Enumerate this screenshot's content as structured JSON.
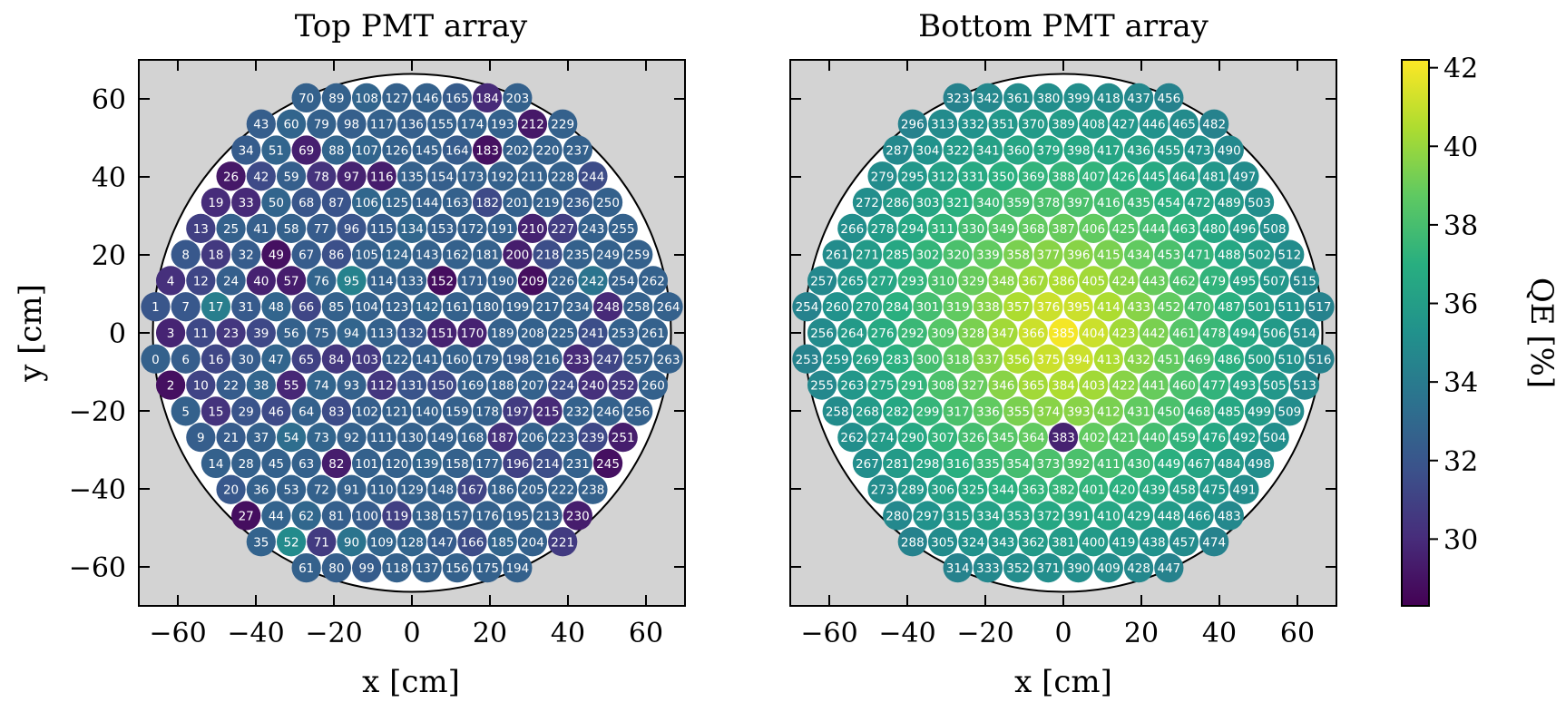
{
  "chart_data": [
    {
      "type": "scatter",
      "title": "Top PMT array",
      "xlabel": "x [cm]",
      "ylabel": "y [cm]",
      "xlim": [
        -70,
        70
      ],
      "ylim": [
        -70,
        70
      ],
      "xticks": [
        -60,
        -40,
        -20,
        0,
        20,
        40,
        60
      ],
      "yticks": [
        -60,
        -40,
        -20,
        0,
        20,
        40,
        60
      ],
      "tick_labels": [
        "−60",
        "−40",
        "−20",
        "0",
        "20",
        "40",
        "60"
      ],
      "background": "#d3d3d3",
      "boundary_radius_cm": 66.4,
      "pmt_radius_cm": 3.8,
      "pitch_cm": 7.73,
      "pmt_ids": "0-252",
      "rows": [
        {
          "y": -66.5,
          "x_start": -14.1,
          "ids": [
            0,
            6,
            15
          ]
        },
        {
          "y": -59.9,
          "x_start": -21.1,
          "ids": [
            1,
            7,
            16,
            27
          ]
        },
        {
          "y": -52.7,
          "x_start": -28.0,
          "ids": [
            2,
            8,
            17,
            28,
            40
          ]
        },
        {
          "y": -46.0,
          "x_start": -42.0,
          "ids": [
            3,
            9,
            18,
            29,
            41,
            54,
            69
          ]
        },
        {
          "y": -39.0,
          "x_start": -49.0,
          "ids": [
            4,
            10,
            19,
            30,
            42,
            55,
            70,
            85
          ]
        },
        {
          "y": -32.3,
          "x_start": -49.0,
          "ids": [
            5,
            11,
            20,
            31,
            43,
            56,
            71,
            86,
            102
          ]
        },
        {
          "y": -25.3,
          "x_start": -56.0,
          "ids": [
            12,
            21,
            32,
            44,
            57,
            72,
            87,
            103,
            118
          ]
        },
        {
          "y": -18.5,
          "x_start": -56.0,
          "ids": [
            14,
            22,
            33,
            45,
            58,
            73,
            88,
            104,
            119,
            135
          ]
        },
        {
          "y": -11.6,
          "x_start": -56.0,
          "ids": [
            13,
            23,
            34,
            46,
            59,
            74,
            89,
            105,
            120,
            136
          ]
        },
        {
          "y": -4.7,
          "x_start": -63.0,
          "ids": [
            24,
            35,
            47,
            60,
            75,
            90,
            106,
            121,
            137,
            152,
            151
          ]
        },
        {
          "y": 2.2,
          "x_start": -63.0,
          "ids": [
            25,
            36,
            48,
            61,
            76,
            91,
            107,
            122,
            138,
            153,
            168
          ]
        },
        {
          "y": 9.1,
          "x_start": -63.0,
          "ids": [
            26,
            37,
            49,
            62,
            77,
            92,
            108,
            123,
            139,
            154,
            169,
            184
          ]
        },
        {
          "y": 16.0,
          "x_start": -63.0,
          "ids": [
            39,
            51,
            64,
            79,
            94,
            109,
            124,
            140,
            155,
            170,
            185,
            199
          ]
        },
        {
          "y": 22.9,
          "x_start": -63.0,
          "ids": [
            38,
            50,
            63,
            78,
            93,
            110,
            125,
            141,
            156,
            171,
            186,
            200
          ]
        },
        {
          "y": 29.8,
          "x_start": -63.0,
          "ids": [
            53,
            65,
            80,
            95,
            111,
            126,
            142,
            157,
            172,
            187,
            201
          ]
        },
        {
          "y": 36.7,
          "x_start": -63.0,
          "ids": [
            52,
            66,
            81,
            96,
            112,
            127,
            143,
            158,
            173,
            188,
            202,
            213
          ]
        },
        {
          "y": 43.6,
          "x_start": -63.0,
          "ids": [
            67,
            82,
            97,
            113,
            128,
            144,
            159,
            174,
            189,
            203,
            214,
            226
          ]
        },
        {
          "y": 50.5,
          "x_start": -63.0,
          "ids": [
            68,
            83,
            98,
            114,
            129,
            145,
            160,
            175,
            190,
            204,
            215,
            227
          ]
        },
        {
          "y": 57.4,
          "x_start": -63.0,
          "ids": [
            84,
            99,
            115,
            130,
            146,
            161,
            176,
            191,
            205,
            216,
            228
          ]
        },
        {
          "y": 64.3,
          "x_start": -63.0,
          "ids": [
            101,
            100,
            116,
            131,
            147,
            162,
            177,
            192,
            206,
            217,
            229,
            238
          ]
        }
      ],
      "pmts": [
        {
          "id": 0,
          "x": -14.1,
          "y": -64.9,
          "qe": 32.6
        },
        {
          "id": 6,
          "x": 0.6,
          "y": -64.9,
          "qe": 32.4
        },
        {
          "id": 15,
          "x": 14.1,
          "y": -64.9,
          "qe": 30.3
        },
        {
          "id": 1,
          "x": -21.1,
          "y": -59.0,
          "qe": 32.0
        },
        {
          "id": 7,
          "x": -7.0,
          "y": -59.0,
          "qe": 32.1
        },
        {
          "id": 16,
          "x": 7.0,
          "y": -59.0,
          "qe": 31.2
        },
        {
          "id": 27,
          "x": 21.1,
          "y": -59.0,
          "qe": 28.8
        },
        {
          "id": 2,
          "x": -28.1,
          "y": -53.1,
          "qe": 28.9
        },
        {
          "id": 8,
          "x": -14.1,
          "y": -53.1,
          "qe": 32.1
        },
        {
          "id": 17,
          "x": 0.0,
          "y": -53.1,
          "qe": 34.2
        },
        {
          "id": 28,
          "x": 14.1,
          "y": -53.1,
          "qe": 32.6
        },
        {
          "id": 40,
          "x": 28.1,
          "y": -53.1,
          "qe": 29.6
        },
        {
          "id": 3,
          "x": -35.2,
          "y": -47.2,
          "qe": 29.7
        },
        {
          "id": 9,
          "x": -21.1,
          "y": -47.2,
          "qe": 32.4
        },
        {
          "id": 18,
          "x": -7.0,
          "y": -47.2,
          "qe": 30.6
        },
        {
          "id": 29,
          "x": 7.0,
          "y": -47.2,
          "qe": 31.9
        },
        {
          "id": 41,
          "x": 21.1,
          "y": -47.2,
          "qe": 32.5
        },
        {
          "id": 55,
          "x": 28.1,
          "y": -47.2,
          "qe": 29.8
        },
        {
          "id": 54,
          "x": 35.2,
          "y": -47.2,
          "qe": 33.3
        },
        {
          "id": 69,
          "x": 42.2,
          "y": -47.2,
          "qe": 29.5
        },
        {
          "id": 4,
          "x": -42.2,
          "y": -47.2,
          "qe": 30.2
        },
        {
          "id": 10,
          "x": -28.1,
          "y": -47.2,
          "qe": 31.1
        },
        {
          "id": 19,
          "x": -14.1,
          "y": -47.2,
          "qe": 30.0
        },
        {
          "id": 30,
          "x": 0.0,
          "y": -47.2,
          "qe": 32.3
        },
        {
          "id": 42,
          "x": 14.1,
          "y": -47.2,
          "qe": 31.4
        },
        {
          "id": 5,
          "x": -49.2,
          "y": -44.3,
          "qe": 32.6
        },
        {
          "id": 11,
          "x": -35.2,
          "y": -44.3,
          "qe": 31.3
        },
        {
          "id": 20,
          "x": -21.1,
          "y": -44.3,
          "qe": 32.1
        },
        {
          "id": 31,
          "x": -7.0,
          "y": -44.3,
          "qe": 32.2
        },
        {
          "id": 43,
          "x": 7.0,
          "y": -44.3,
          "qe": 32.4
        },
        {
          "id": 56,
          "x": 21.1,
          "y": -44.3,
          "qe": 32.6
        },
        {
          "id": 70,
          "x": 35.2,
          "y": -44.3,
          "qe": 32.6
        },
        {
          "id": 85,
          "x": 49.2,
          "y": -44.3,
          "qe": 32.6
        },
        {
          "id": 12,
          "x": -42.2,
          "y": -38.4,
          "qe": 31.2
        },
        {
          "id": 21,
          "x": -28.1,
          "y": -38.4,
          "qe": 32.3
        },
        {
          "id": 32,
          "x": -14.1,
          "y": -38.4,
          "qe": 32.3
        },
        {
          "id": 44,
          "x": 0.0,
          "y": -38.4,
          "qe": 32.7
        },
        {
          "id": 57,
          "x": 14.1,
          "y": -38.4,
          "qe": 29.4
        },
        {
          "id": 71,
          "x": 28.1,
          "y": -38.4,
          "qe": 30.7
        },
        {
          "id": 86,
          "x": 42.2,
          "y": -38.4,
          "qe": 31.7
        },
        {
          "id": 102,
          "x": 49.2,
          "y": -35.4,
          "qe": 32.5
        },
        {
          "id": 13,
          "x": -49.2,
          "y": -35.4,
          "qe": 30.9
        },
        {
          "id": 22,
          "x": -35.2,
          "y": -35.4,
          "qe": 32.3
        },
        {
          "id": 33,
          "x": -21.1,
          "y": -35.4,
          "qe": 29.9
        },
        {
          "id": 45,
          "x": -7.0,
          "y": -35.4,
          "qe": 32.6
        },
        {
          "id": 58,
          "x": 7.0,
          "y": -35.4,
          "qe": 32.6
        },
        {
          "id": 72,
          "x": 21.1,
          "y": -35.4,
          "qe": 32.6
        },
        {
          "id": 87,
          "x": 35.2,
          "y": -35.4,
          "qe": 31.9
        },
        {
          "id": 103,
          "x": 42.2,
          "y": -32.5,
          "qe": 30.6
        },
        {
          "id": 14,
          "x": -56.3,
          "y": -32.5,
          "qe": 32.6
        },
        {
          "id": 23,
          "x": -42.2,
          "y": -32.5,
          "qe": 30.5
        },
        {
          "id": 34,
          "x": -28.1,
          "y": -32.5,
          "qe": 32.3
        },
        {
          "id": 46,
          "x": -14.1,
          "y": -32.5,
          "qe": 31.4
        },
        {
          "id": 59,
          "x": 0.0,
          "y": -32.5,
          "qe": 32.5
        },
        {
          "id": 73,
          "x": 14.1,
          "y": -32.5,
          "qe": 32.8
        },
        {
          "id": 88,
          "x": 28.1,
          "y": -32.5,
          "qe": 32.8
        },
        {
          "id": 118,
          "x": 56.3,
          "y": -32.5,
          "qe": 32.6
        }
      ]
    },
    {
      "type": "scatter",
      "title": "Bottom PMT array",
      "xlabel": "x [cm]",
      "ylabel": "",
      "xlim": [
        -70,
        70
      ],
      "ylim": [
        -70,
        70
      ],
      "xticks": [
        -60,
        -40,
        -20,
        0,
        20,
        40,
        60
      ],
      "tick_labels": [
        "−60",
        "−40",
        "−20",
        "0",
        "20",
        "40",
        "60"
      ],
      "background": "#d3d3d3",
      "boundary_radius_cm": 66.4,
      "pmt_ids": "253-493"
    }
  ],
  "colorbar": {
    "label": "QE [%]",
    "colormap": "viridis",
    "range": [
      28.3,
      42.2
    ],
    "ticks": [
      30,
      32,
      34,
      36,
      38,
      40,
      42
    ]
  },
  "top_labels": {
    "top": {
      "0": 32.6,
      "1": 32.0,
      "2": 28.9,
      "3": 29.7,
      "4": 30.2,
      "5": 32.6,
      "6": 32.4,
      "7": 32.1,
      "8": 32.1,
      "9": 32.4,
      "10": 31.1,
      "11": 31.3,
      "12": 31.2,
      "13": 30.9,
      "14": 32.6,
      "15": 30.3,
      "16": 31.2,
      "17": 34.2,
      "18": 30.6,
      "19": 30.0,
      "20": 32.1,
      "21": 32.3,
      "22": 32.3,
      "23": 30.5,
      "24": 32.5,
      "25": 32.6,
      "26": 29.2,
      "27": 28.8,
      "28": 32.6,
      "29": 31.9,
      "30": 32.3,
      "31": 32.2,
      "32": 32.3,
      "33": 29.9,
      "34": 32.3,
      "35": 32.7,
      "36": 32.6,
      "37": 32.6,
      "38": 32.8,
      "39": 31.3,
      "40": 29.6,
      "41": 32.5,
      "42": 31.4,
      "43": 32.4,
      "44": 32.7,
      "45": 32.6,
      "46": 31.4,
      "47": 32.8,
      "48": 32.8,
      "49": 28.9,
      "50": 32.8,
      "51": 32.8,
      "52": 34.9,
      "53": 32.6,
      "54": 33.3,
      "55": 29.8,
      "56": 32.6,
      "57": 29.4,
      "58": 32.6,
      "59": 32.5,
      "60": 32.8,
      "61": 32.6,
      "62": 32.9,
      "63": 32.6,
      "64": 32.6,
      "65": 31.0,
      "66": 31.2,
      "67": 32.3,
      "68": 32.0,
      "69": 29.5,
      "70": 32.6,
      "71": 30.7,
      "72": 32.6,
      "73": 32.8,
      "74": 32.8,
      "75": 32.6,
      "76": 32.8,
      "77": 32.3,
      "78": 30.3,
      "79": 32.6,
      "80": 32.5,
      "81": 32.5,
      "82": 29.4,
      "83": 31.5,
      "84": 30.5,
      "85": 32.6,
      "86": 31.7,
      "87": 31.9,
      "88": 32.8,
      "89": 32.6,
      "90": 33.6,
      "91": 32.6,
      "92": 32.6,
      "93": 32.6,
      "94": 32.8,
      "95": 34.4,
      "96": 31.9,
      "97": 29.6,
      "98": 32.5,
      "99": 32.3,
      "100": 32.3,
      "101": 32.6,
      "102": 32.5,
      "103": 30.6,
      "104": 32.6,
      "105": 32.6,
      "106": 32.9,
      "107": 32.8,
      "108": 32.8,
      "109": 32.8,
      "110": 32.6,
      "111": 32.6,
      "112": 30.5,
      "113": 32.6,
      "114": 32.6,
      "115": 32.3,
      "116": 29.4,
      "117": 32.6,
      "118": 32.6,
      "119": 30.9,
      "120": 32.6,
      "121": 32.6,
      "122": 32.6,
      "123": 32.6,
      "124": 32.8,
      "125": 32.8,
      "126": 32.6,
      "127": 32.6,
      "128": 32.8,
      "129": 32.6,
      "130": 32.6,
      "131": 31.9,
      "132": 32.1,
      "133": 32.6,
      "134": 32.9,
      "135": 32.6,
      "136": 32.5,
      "137": 32.6,
      "138": 32.6,
      "139": 32.8,
      "140": 32.6,
      "141": 32.6,
      "142": 32.8,
      "143": 32.6,
      "144": 32.6,
      "145": 32.6,
      "146": 32.6,
      "147": 32.3,
      "148": 32.6,
      "149": 32.6,
      "150": 31.3,
      "151": 29.6,
      "152": 28.8,
      "153": 32.5,
      "154": 32.5,
      "155": 32.6,
      "156": 32.6,
      "157": 32.6,
      "158": 32.6,
      "159": 32.6,
      "160": 32.6,
      "161": 32.6,
      "162": 32.6,
      "163": 32.6,
      "164": 32.3,
      "165": 32.3,
      "166": 31.5,
      "167": 31.1,
      "168": 32.6,
      "169": 32.6,
      "170": 29.6,
      "171": 32.5,
      "172": 32.6,
      "173": 32.6,
      "174": 32.6,
      "175": 32.6,
      "176": 32.6,
      "177": 32.6,
      "178": 32.6,
      "179": 32.6,
      "180": 32.6,
      "181": 32.6,
      "182": 31.4,
      "183": 28.9,
      "184": 29.9,
      "185": 32.8,
      "186": 32.6,
      "187": 30.2,
      "188": 32.6,
      "189": 32.6,
      "190": 32.6,
      "191": 32.6,
      "192": 32.6,
      "193": 32.6,
      "194": 32.6,
      "195": 32.6,
      "196": 31.0,
      "197": 30.7,
      "198": 32.3,
      "199": 32.6,
      "200": 29.4,
      "201": 32.6,
      "202": 32.6,
      "203": 32.6,
      "204": 32.6,
      "205": 32.6,
      "206": 32.6,
      "207": 32.6,
      "208": 32.6,
      "209": 28.8,
      "210": 29.6,
      "211": 32.6,
      "212": 29.2,
      "213": 32.6,
      "214": 31.6,
      "215": 29.9,
      "216": 32.6,
      "217": 32.6,
      "218": 31.6,
      "219": 32.6,
      "220": 32.6,
      "221": 30.7,
      "222": 32.6,
      "223": 32.6,
      "224": 31.6,
      "225": 32.6,
      "226": 32.6,
      "227": 30.8,
      "228": 32.6,
      "229": 32.6,
      "230": 29.4,
      "231": 32.6,
      "232": 32.6,
      "233": 29.9,
      "234": 32.6,
      "235": 32.6,
      "236": 32.3,
      "237": 32.6,
      "238": 32.6,
      "239": 31.3,
      "240": 30.2,
      "241": 31.6,
      "242": 33.6,
      "243": 32.6,
      "244": 31.5,
      "245": 28.9,
      "246": 32.6,
      "247": 31.2,
      "248": 29.9,
      "249": 32.6,
      "250": 32.6,
      "251": 29.4,
      "252": 30.5
    }
  }
}
